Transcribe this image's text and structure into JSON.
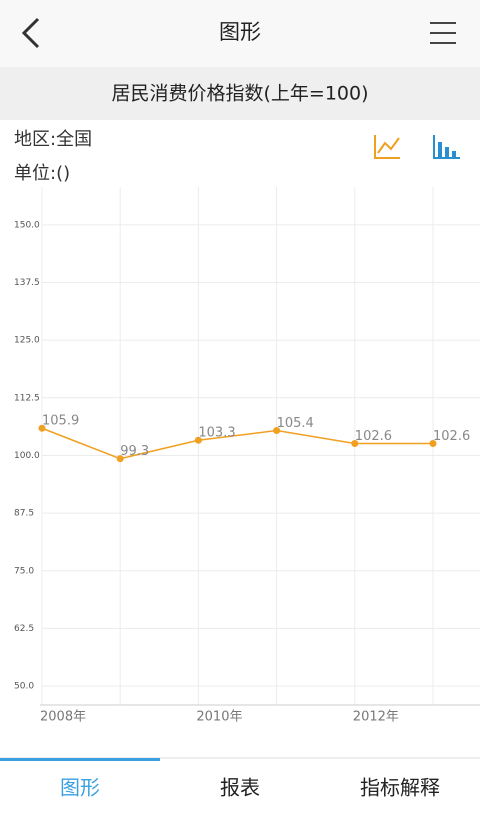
{
  "header": {
    "title": "图形"
  },
  "info": [
    "地区:全国",
    "单位:()"
  ],
  "tabs": [
    "图形",
    "报表",
    "指标解释"
  ],
  "chart_data": {
    "type": "line",
    "title": "居民消费价格指数(上年=100)",
    "categories": [
      "2008年",
      null,
      "2010年",
      null,
      "2012年",
      null
    ],
    "series": [
      {
        "name": "居民消费价格指数",
        "color": "#f0a020",
        "values": [
          105.9,
          99.3,
          103.3,
          105.4,
          102.6,
          102.6
        ]
      }
    ],
    "ylim": [
      45.9,
      158.2
    ],
    "yticks": [
      {
        "value": 50,
        "label": "50.0"
      },
      62.5,
      {
        "value": 75,
        "label": "75.0"
      },
      87.5,
      {
        "value": 100,
        "label": "100.0"
      },
      112.5,
      {
        "value": 125,
        "label": "125.0"
      },
      137.5,
      {
        "value": 150,
        "label": "150.0"
      }
    ],
    "grid": true
  }
}
